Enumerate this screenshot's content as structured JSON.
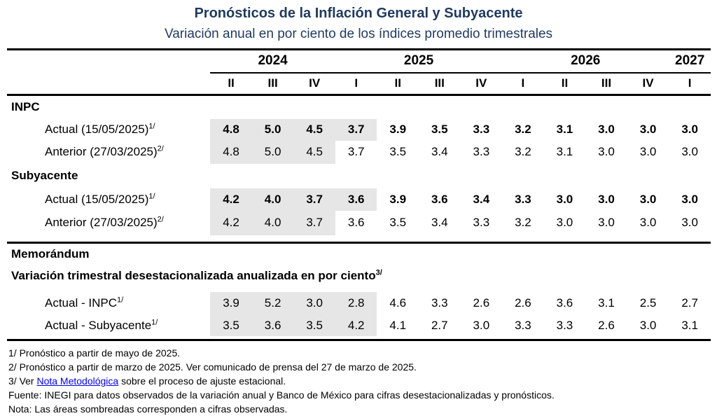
{
  "title": "Pronósticos de la Inflación General y Subyacente",
  "subtitle": "Variación anual en por ciento de los índices promedio trimestrales",
  "colors": {
    "heading": "#1F3A5F",
    "shading": "#E7E6E6",
    "rule": "#000000",
    "link": "#0000EE",
    "text": "#000000"
  },
  "table": {
    "year_groups": [
      {
        "label": "2024",
        "span": 3
      },
      {
        "label": "2025",
        "span": 4
      },
      {
        "label": "2026",
        "span": 4
      },
      {
        "label": "2027",
        "span": 1
      }
    ],
    "quarters": [
      "II",
      "III",
      "IV",
      "I",
      "II",
      "III",
      "IV",
      "I",
      "II",
      "III",
      "IV",
      "I"
    ],
    "sections": [
      {
        "header": "INPC",
        "rows": [
          {
            "label": "Actual (15/05/2025)",
            "sup": "1/",
            "bold": true,
            "shaded": 4,
            "values": [
              "4.8",
              "5.0",
              "4.5",
              "3.7",
              "3.9",
              "3.5",
              "3.3",
              "3.2",
              "3.1",
              "3.0",
              "3.0",
              "3.0"
            ]
          },
          {
            "label": "Anterior (27/03/2025)",
            "sup": "2/",
            "bold": false,
            "shaded": 3,
            "values": [
              "4.8",
              "5.0",
              "4.5",
              "3.7",
              "3.5",
              "3.4",
              "3.3",
              "3.2",
              "3.1",
              "3.0",
              "3.0",
              "3.0"
            ]
          }
        ]
      },
      {
        "header": "Subyacente",
        "rows": [
          {
            "label": "Actual (15/05/2025)",
            "sup": "1/",
            "bold": true,
            "shaded": 4,
            "values": [
              "4.2",
              "4.0",
              "3.7",
              "3.6",
              "3.9",
              "3.6",
              "3.4",
              "3.3",
              "3.0",
              "3.0",
              "3.0",
              "3.0"
            ]
          },
          {
            "label": "Anterior (27/03/2025)",
            "sup": "2/",
            "bold": false,
            "shaded": 3,
            "values": [
              "4.2",
              "4.0",
              "3.7",
              "3.6",
              "3.5",
              "3.4",
              "3.3",
              "3.2",
              "3.0",
              "3.0",
              "3.0",
              "3.0"
            ]
          }
        ]
      }
    ],
    "memo": {
      "header": "Memorándum",
      "subheader": "Variación trimestral desestacionalizada anualizada en por ciento",
      "subheader_sup": "3/",
      "rows": [
        {
          "label": "Actual - INPC",
          "sup": "1/",
          "bold": false,
          "shaded": 4,
          "values": [
            "3.9",
            "5.2",
            "3.0",
            "2.8",
            "4.6",
            "3.3",
            "2.6",
            "2.6",
            "3.6",
            "3.1",
            "2.5",
            "2.7"
          ]
        },
        {
          "label": "Actual - Subyacente",
          "sup": "1/",
          "bold": false,
          "shaded": 4,
          "values": [
            "3.5",
            "3.6",
            "3.5",
            "4.2",
            "4.1",
            "2.7",
            "3.0",
            "3.3",
            "3.3",
            "2.6",
            "3.0",
            "3.1"
          ]
        }
      ]
    }
  },
  "footnotes": {
    "line1": "1/ Pronóstico a partir de mayo de 2025.",
    "line2": "2/ Pronóstico a partir de marzo de 2025. Ver comunicado de prensa del 27 de marzo de 2025.",
    "line3_prefix": "3/ Ver ",
    "line3_link": "Nota Metodológica",
    "line3_suffix": " sobre el proceso de ajuste estacional.",
    "fuente": "Fuente: INEGI para datos observados de la variación anual y Banco de México para cifras desestacionalizadas y pronósticos.",
    "nota": "Nota: Las áreas sombreadas corresponden a cifras observadas."
  },
  "chart_data": {
    "type": "table",
    "title": "Pronósticos de la Inflación General y Subyacente",
    "subtitle": "Variación anual en por ciento de los índices promedio trimestrales",
    "columns": [
      "2024-II",
      "2024-III",
      "2024-IV",
      "2025-I",
      "2025-II",
      "2025-III",
      "2025-IV",
      "2026-I",
      "2026-II",
      "2026-III",
      "2026-IV",
      "2027-I"
    ],
    "rows": [
      {
        "section": "INPC",
        "name": "Actual (15/05/2025) 1/",
        "values": [
          4.8,
          5.0,
          4.5,
          3.7,
          3.9,
          3.5,
          3.3,
          3.2,
          3.1,
          3.0,
          3.0,
          3.0
        ],
        "shaded_observed_cells": 4
      },
      {
        "section": "INPC",
        "name": "Anterior (27/03/2025) 2/",
        "values": [
          4.8,
          5.0,
          4.5,
          3.7,
          3.5,
          3.4,
          3.3,
          3.2,
          3.1,
          3.0,
          3.0,
          3.0
        ],
        "shaded_observed_cells": 3
      },
      {
        "section": "Subyacente",
        "name": "Actual (15/05/2025) 1/",
        "values": [
          4.2,
          4.0,
          3.7,
          3.6,
          3.9,
          3.6,
          3.4,
          3.3,
          3.0,
          3.0,
          3.0,
          3.0
        ],
        "shaded_observed_cells": 4
      },
      {
        "section": "Subyacente",
        "name": "Anterior (27/03/2025) 2/",
        "values": [
          4.2,
          4.0,
          3.7,
          3.6,
          3.5,
          3.4,
          3.3,
          3.2,
          3.0,
          3.0,
          3.0,
          3.0
        ],
        "shaded_observed_cells": 3
      },
      {
        "section": "Memorándum: Variación trimestral desestacionalizada anualizada en por ciento 3/",
        "name": "Actual - INPC 1/",
        "values": [
          3.9,
          5.2,
          3.0,
          2.8,
          4.6,
          3.3,
          2.6,
          2.6,
          3.6,
          3.1,
          2.5,
          2.7
        ],
        "shaded_observed_cells": 4
      },
      {
        "section": "Memorándum: Variación trimestral desestacionalizada anualizada en por ciento 3/",
        "name": "Actual - Subyacente 1/",
        "values": [
          3.5,
          3.6,
          3.5,
          4.2,
          4.1,
          2.7,
          3.0,
          3.3,
          3.3,
          2.6,
          3.0,
          3.1
        ],
        "shaded_observed_cells": 4
      }
    ]
  }
}
